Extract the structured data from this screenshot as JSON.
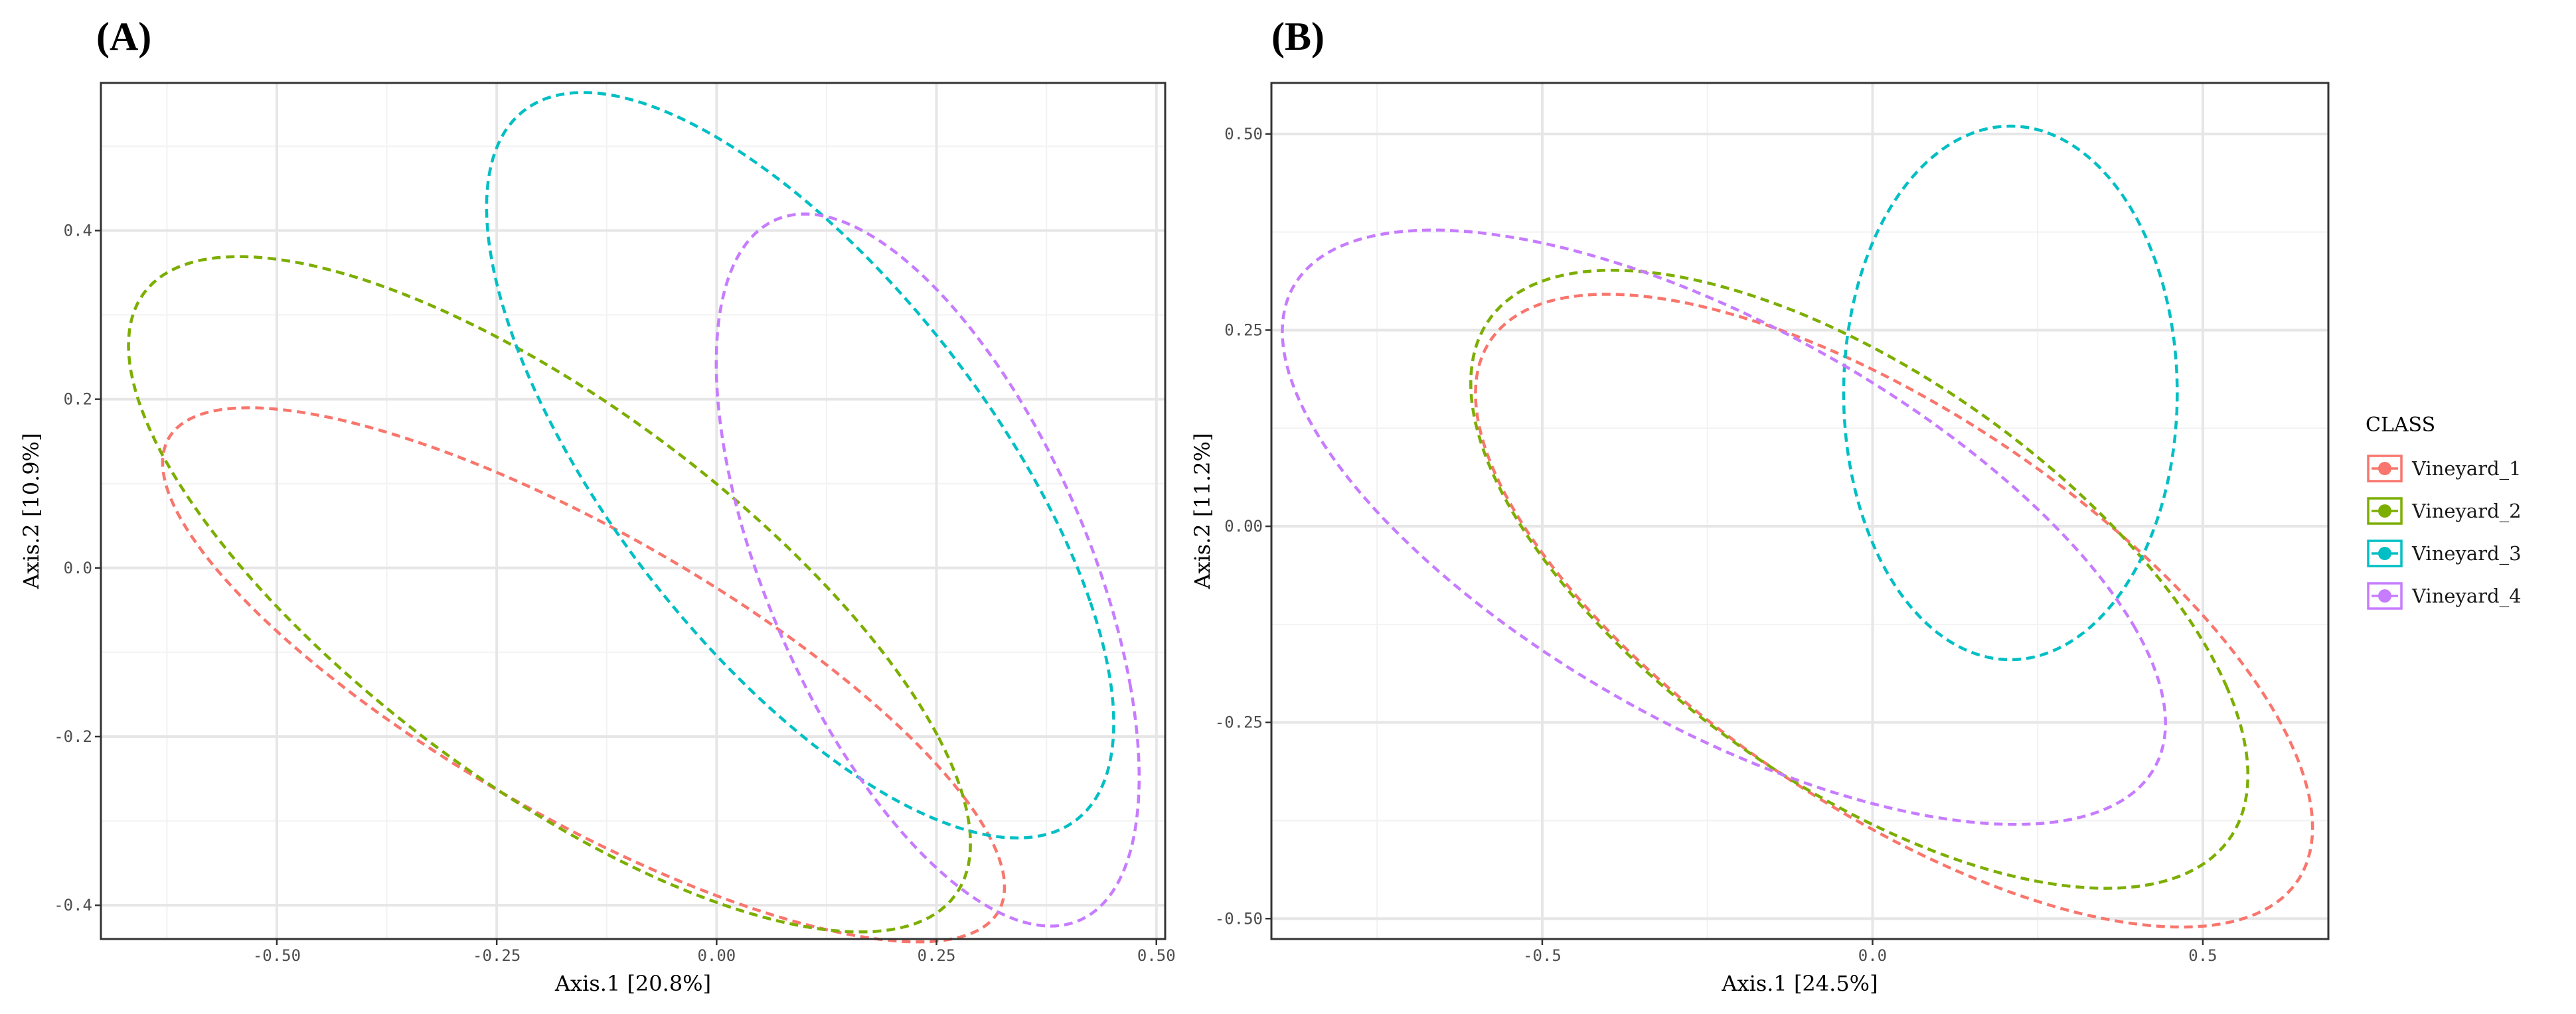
{
  "chart_data": [
    {
      "type": "scatter",
      "panel_label": "(A)",
      "xlabel": "Axis.1  [20.8%]",
      "ylabel": "Axis.2  [10.9%]",
      "xlim": [
        -0.7,
        0.51
      ],
      "ylim": [
        -0.44,
        0.575
      ],
      "xticks": [
        -0.5,
        -0.25,
        0.0,
        0.25,
        0.5
      ],
      "xtick_labels": [
        "-0.50",
        "-0.25",
        "0.00",
        "0.25",
        "0.50"
      ],
      "yticks": [
        -0.4,
        -0.2,
        0.0,
        0.2,
        0.4
      ],
      "ytick_labels": [
        "-0.4",
        "-0.2",
        "0.0",
        "0.2",
        "0.4"
      ],
      "grid": true,
      "series": [
        {
          "name": "Vineyard_1",
          "color": "#F8766D",
          "ellipse": {
            "extremes": [
              [
                -0.345,
                0.168
              ],
              [
                0.065,
                -0.395
              ],
              [
                -0.595,
                0.005
              ],
              [
                0.27,
                -0.285
              ]
            ]
          }
        },
        {
          "name": "Vineyard_2",
          "color": "#7CAE00",
          "ellipse": {
            "extremes": [
              [
                -0.37,
                0.35
              ],
              [
                -0.005,
                -0.375
              ],
              [
                -0.635,
                0.12
              ],
              [
                0.25,
                -0.22
              ]
            ]
          }
        },
        {
          "name": "Vineyard_3",
          "color": "#00BFC4",
          "ellipse": {
            "extremes": [
              [
                -0.035,
                0.532
              ],
              [
                0.235,
                -0.29
              ],
              [
                -0.24,
                0.285
              ],
              [
                0.42,
                -0.04
              ]
            ]
          }
        },
        {
          "name": "Vineyard_4",
          "color": "#C77CFF",
          "ellipse": {
            "extremes": [
              [
                0.17,
                0.4
              ],
              [
                0.31,
                -0.4
              ],
              [
                0.01,
                0.13
              ],
              [
                0.47,
                -0.14
              ]
            ]
          }
        }
      ]
    },
    {
      "type": "scatter",
      "panel_label": "(B)",
      "xlabel": "Axis.1  [24.5%]",
      "ylabel": "Axis.2  [11.2%]",
      "xlim": [
        -0.91,
        0.69
      ],
      "ylim": [
        -0.526,
        0.565
      ],
      "xticks": [
        -0.5,
        0.0,
        0.5
      ],
      "xtick_labels": [
        "-0.5",
        "0.0",
        "0.5"
      ],
      "yticks": [
        -0.5,
        -0.25,
        0.0,
        0.25,
        0.5
      ],
      "ytick_labels": [
        "-0.50",
        "-0.25",
        "0.00",
        "0.25",
        "0.50"
      ],
      "grid": true,
      "series": [
        {
          "name": "Vineyard_1",
          "color": "#F8766D",
          "ellipse": {
            "extremes": [
              [
                -0.22,
                0.28
              ],
              [
                0.29,
                -0.48
              ],
              [
                -0.55,
                0.02
              ],
              [
                0.61,
                -0.25
              ]
            ]
          }
        },
        {
          "name": "Vineyard_2",
          "color": "#7CAE00",
          "ellipse": {
            "extremes": [
              [
                -0.22,
                0.3
              ],
              [
                0.17,
                -0.44
              ],
              [
                -0.57,
                0.07
              ],
              [
                0.54,
                -0.2
              ]
            ]
          }
        },
        {
          "name": "Vineyard_3",
          "color": "#00BFC4",
          "ellipse": {
            "extremes": [
              [
                0.21,
                0.51
              ],
              [
                0.21,
                -0.17
              ],
              [
                -0.045,
                0.17
              ],
              [
                0.46,
                0.17
              ]
            ]
          }
        },
        {
          "name": "Vineyard_4",
          "color": "#C77CFF",
          "ellipse": {
            "extremes": [
              [
                -0.48,
                0.35
              ],
              [
                0.02,
                -0.365
              ],
              [
                -0.84,
                0.13
              ],
              [
                0.4,
                -0.12
              ]
            ]
          }
        }
      ]
    }
  ],
  "legend": {
    "title": "CLASS",
    "position": "right",
    "items": [
      {
        "label": "Vineyard_1",
        "color": "#F8766D"
      },
      {
        "label": "Vineyard_2",
        "color": "#7CAE00"
      },
      {
        "label": "Vineyard_3",
        "color": "#00BFC4"
      },
      {
        "label": "Vineyard_4",
        "color": "#C77CFF"
      }
    ]
  }
}
